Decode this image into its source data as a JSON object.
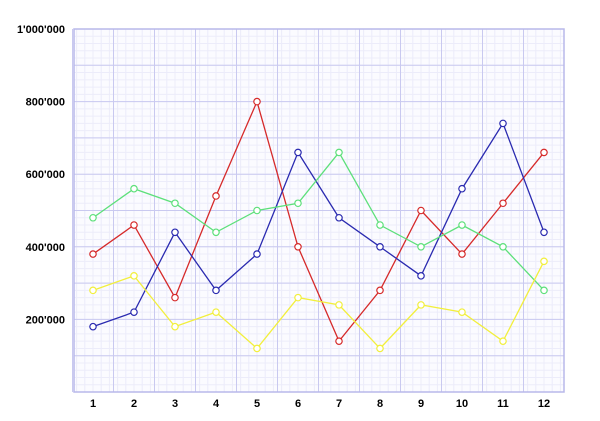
{
  "chart_data": {
    "type": "line",
    "title": "",
    "xlabel": "",
    "ylabel": "",
    "categories": [
      "1",
      "2",
      "3",
      "4",
      "5",
      "6",
      "7",
      "8",
      "9",
      "10",
      "11",
      "12"
    ],
    "ylim": [
      0,
      1000000
    ],
    "y_ticks": [
      {
        "value": 200000,
        "label": "200'000"
      },
      {
        "value": 400000,
        "label": "400'000"
      },
      {
        "value": 600000,
        "label": "600'000"
      },
      {
        "value": 800000,
        "label": "800'000"
      },
      {
        "value": 1000000,
        "label": "1'000'000"
      }
    ],
    "grid": true,
    "legend": "none",
    "series": [
      {
        "color": "#d62a2a",
        "values": [
          380000,
          460000,
          260000,
          540000,
          800000,
          400000,
          140000,
          280000,
          500000,
          380000,
          520000,
          660000
        ]
      },
      {
        "color": "#2a2ab0",
        "values": [
          180000,
          220000,
          440000,
          280000,
          380000,
          660000,
          480000,
          400000,
          320000,
          560000,
          740000,
          440000
        ]
      },
      {
        "color": "#5de07a",
        "values": [
          480000,
          560000,
          520000,
          440000,
          500000,
          520000,
          660000,
          460000,
          400000,
          460000,
          400000,
          280000
        ]
      },
      {
        "color": "#f2ef3c",
        "values": [
          280000,
          320000,
          180000,
          220000,
          120000,
          260000,
          240000,
          120000,
          240000,
          220000,
          140000,
          360000
        ]
      }
    ],
    "colors": {
      "background": "#ffffff",
      "plot_background": "#fbfbff",
      "major_grid": "#c9c9f0",
      "minor_grid": "#ececfa",
      "frame": "#b8b8ea"
    }
  }
}
